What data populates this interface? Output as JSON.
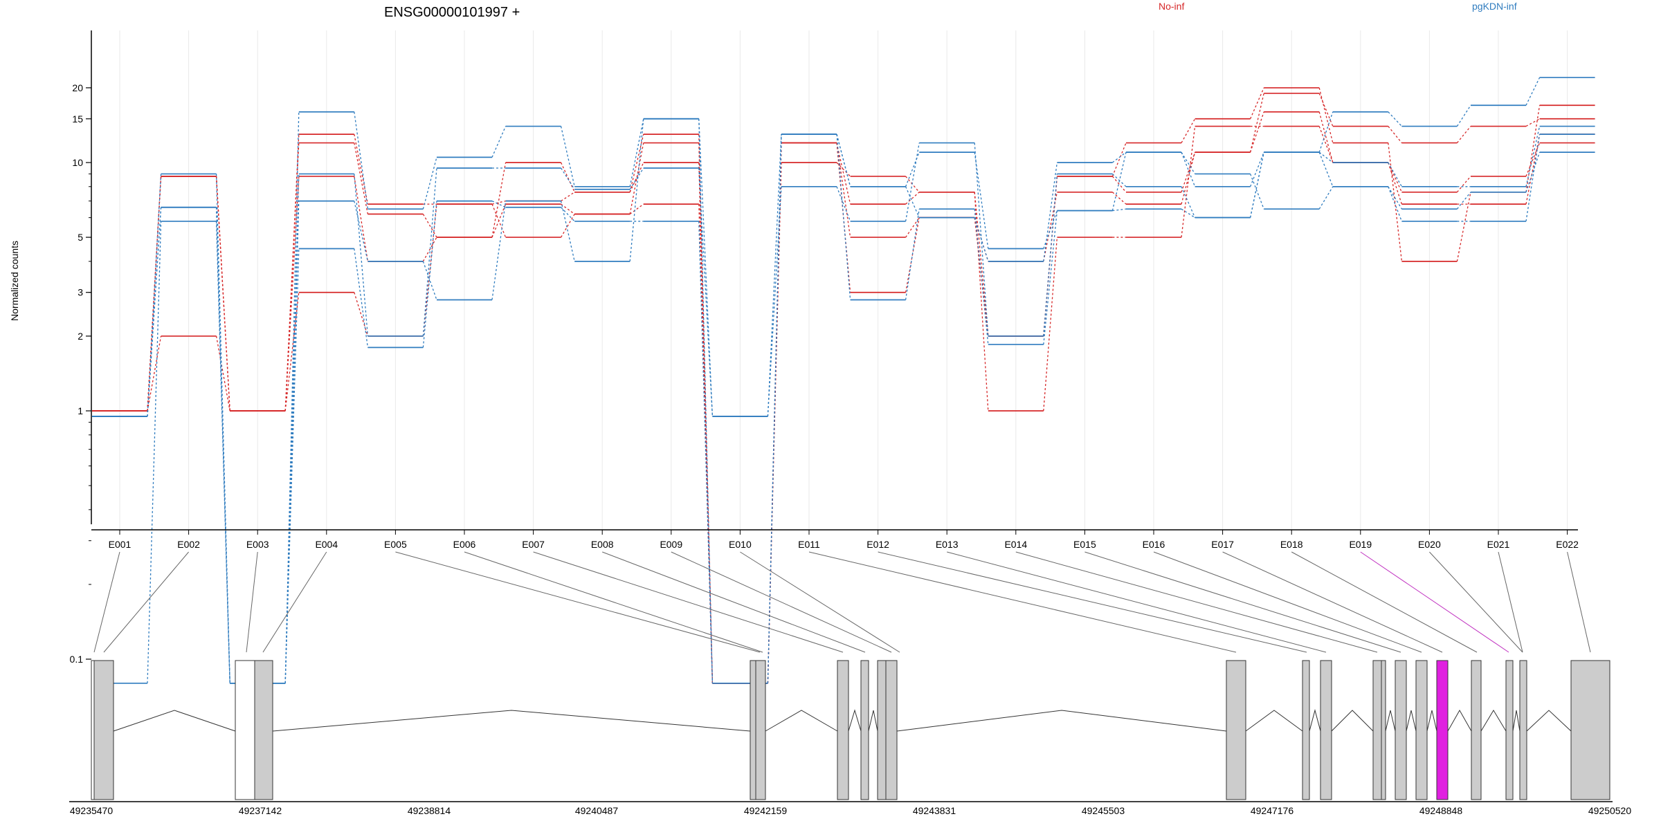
{
  "chart_data": {
    "type": "line",
    "title": "ENSG00000101997 +",
    "ylabel": "Normalized counts",
    "yscale": "log",
    "ylim": [
      0.08,
      25
    ],
    "yticks": [
      0.1,
      1,
      2,
      3,
      5,
      10,
      15,
      20
    ],
    "ytick_labels": [
      "0.1",
      "1",
      "2",
      "3",
      "5",
      "10",
      "15",
      "20"
    ],
    "categories": [
      "E001",
      "E002",
      "E003",
      "E004",
      "E005",
      "E006",
      "E007",
      "E008",
      "E009",
      "E010",
      "E011",
      "E012",
      "E013",
      "E014",
      "E015",
      "E016",
      "E017",
      "E018",
      "E019",
      "E020",
      "E021",
      "E022"
    ],
    "highlight_exon": "E019",
    "legend": [
      {
        "label": "No-inf",
        "color": "#d62728"
      },
      {
        "label": "pgKDN-inf",
        "color": "#2f7cbf"
      }
    ],
    "series": [
      {
        "group": "No-inf",
        "color": "#d62728",
        "values": [
          1.0,
          8.8,
          1.0,
          13.0,
          6.8,
          6.8,
          7.0,
          7.6,
          10.0,
          0.08,
          10.0,
          8.8,
          7.6,
          1.0,
          5.0,
          5.0,
          14.0,
          14.0,
          10.0,
          6.8,
          6.8,
          13.0
        ]
      },
      {
        "group": "No-inf",
        "color": "#d62728",
        "values": [
          1.0,
          8.8,
          1.0,
          12.0,
          6.2,
          5.0,
          10.0,
          7.6,
          13.0,
          0.08,
          12.0,
          3.0,
          6.0,
          4.0,
          7.6,
          6.8,
          11.0,
          16.0,
          10.0,
          7.6,
          8.8,
          12.0
        ]
      },
      {
        "group": "No-inf",
        "color": "#d62728",
        "values": [
          1.0,
          8.8,
          1.0,
          3.0,
          2.0,
          6.8,
          5.0,
          6.2,
          6.8,
          0.08,
          12.0,
          5.0,
          6.0,
          2.0,
          8.8,
          7.6,
          11.0,
          19.0,
          14.0,
          12.0,
          14.0,
          15.0
        ]
      },
      {
        "group": "No-inf",
        "color": "#d62728",
        "values": [
          1.0,
          2.0,
          1.0,
          8.8,
          4.0,
          5.0,
          6.8,
          6.2,
          12.0,
          0.08,
          12.0,
          6.8,
          7.6,
          2.0,
          8.8,
          12.0,
          15.0,
          20.0,
          12.0,
          4.0,
          7.6,
          17.0
        ]
      },
      {
        "group": "pgKDN-inf",
        "color": "#2f7cbf",
        "values": [
          0.95,
          9.0,
          0.08,
          16.0,
          6.5,
          10.5,
          14.0,
          8.0,
          15.0,
          0.95,
          13.0,
          8.0,
          11.0,
          4.5,
          6.4,
          11.0,
          8.0,
          11.0,
          16.0,
          14.0,
          17.0,
          22.0
        ]
      },
      {
        "group": "pgKDN-inf",
        "color": "#2f7cbf",
        "values": [
          0.95,
          6.6,
          0.08,
          9.0,
          2.0,
          9.5,
          9.5,
          7.8,
          9.5,
          0.95,
          8.0,
          5.8,
          12.0,
          2.0,
          9.0,
          8.0,
          6.0,
          11.0,
          10.0,
          8.0,
          8.0,
          14.0
        ]
      },
      {
        "group": "pgKDN-inf",
        "color": "#2f7cbf",
        "values": [
          0.95,
          6.6,
          0.08,
          7.0,
          4.0,
          2.8,
          7.0,
          4.0,
          15.0,
          0.08,
          13.0,
          8.0,
          6.0,
          4.0,
          10.0,
          11.0,
          9.0,
          6.5,
          8.0,
          5.8,
          5.8,
          13.0
        ]
      },
      {
        "group": "pgKDN-inf",
        "color": "#2f7cbf",
        "values": [
          0.08,
          5.8,
          0.08,
          4.5,
          1.8,
          7.0,
          6.6,
          5.8,
          5.8,
          0.08,
          13.0,
          2.8,
          6.5,
          1.85,
          6.4,
          6.5,
          6.0,
          11.0,
          8.0,
          6.5,
          7.6,
          11.0
        ]
      }
    ],
    "gene_model": {
      "coordinate_labels": [
        "49235470",
        "49237142",
        "49238814",
        "49240487",
        "49242159",
        "49243831",
        "49245503",
        "49247176",
        "49248848",
        "49250520"
      ]
    }
  }
}
